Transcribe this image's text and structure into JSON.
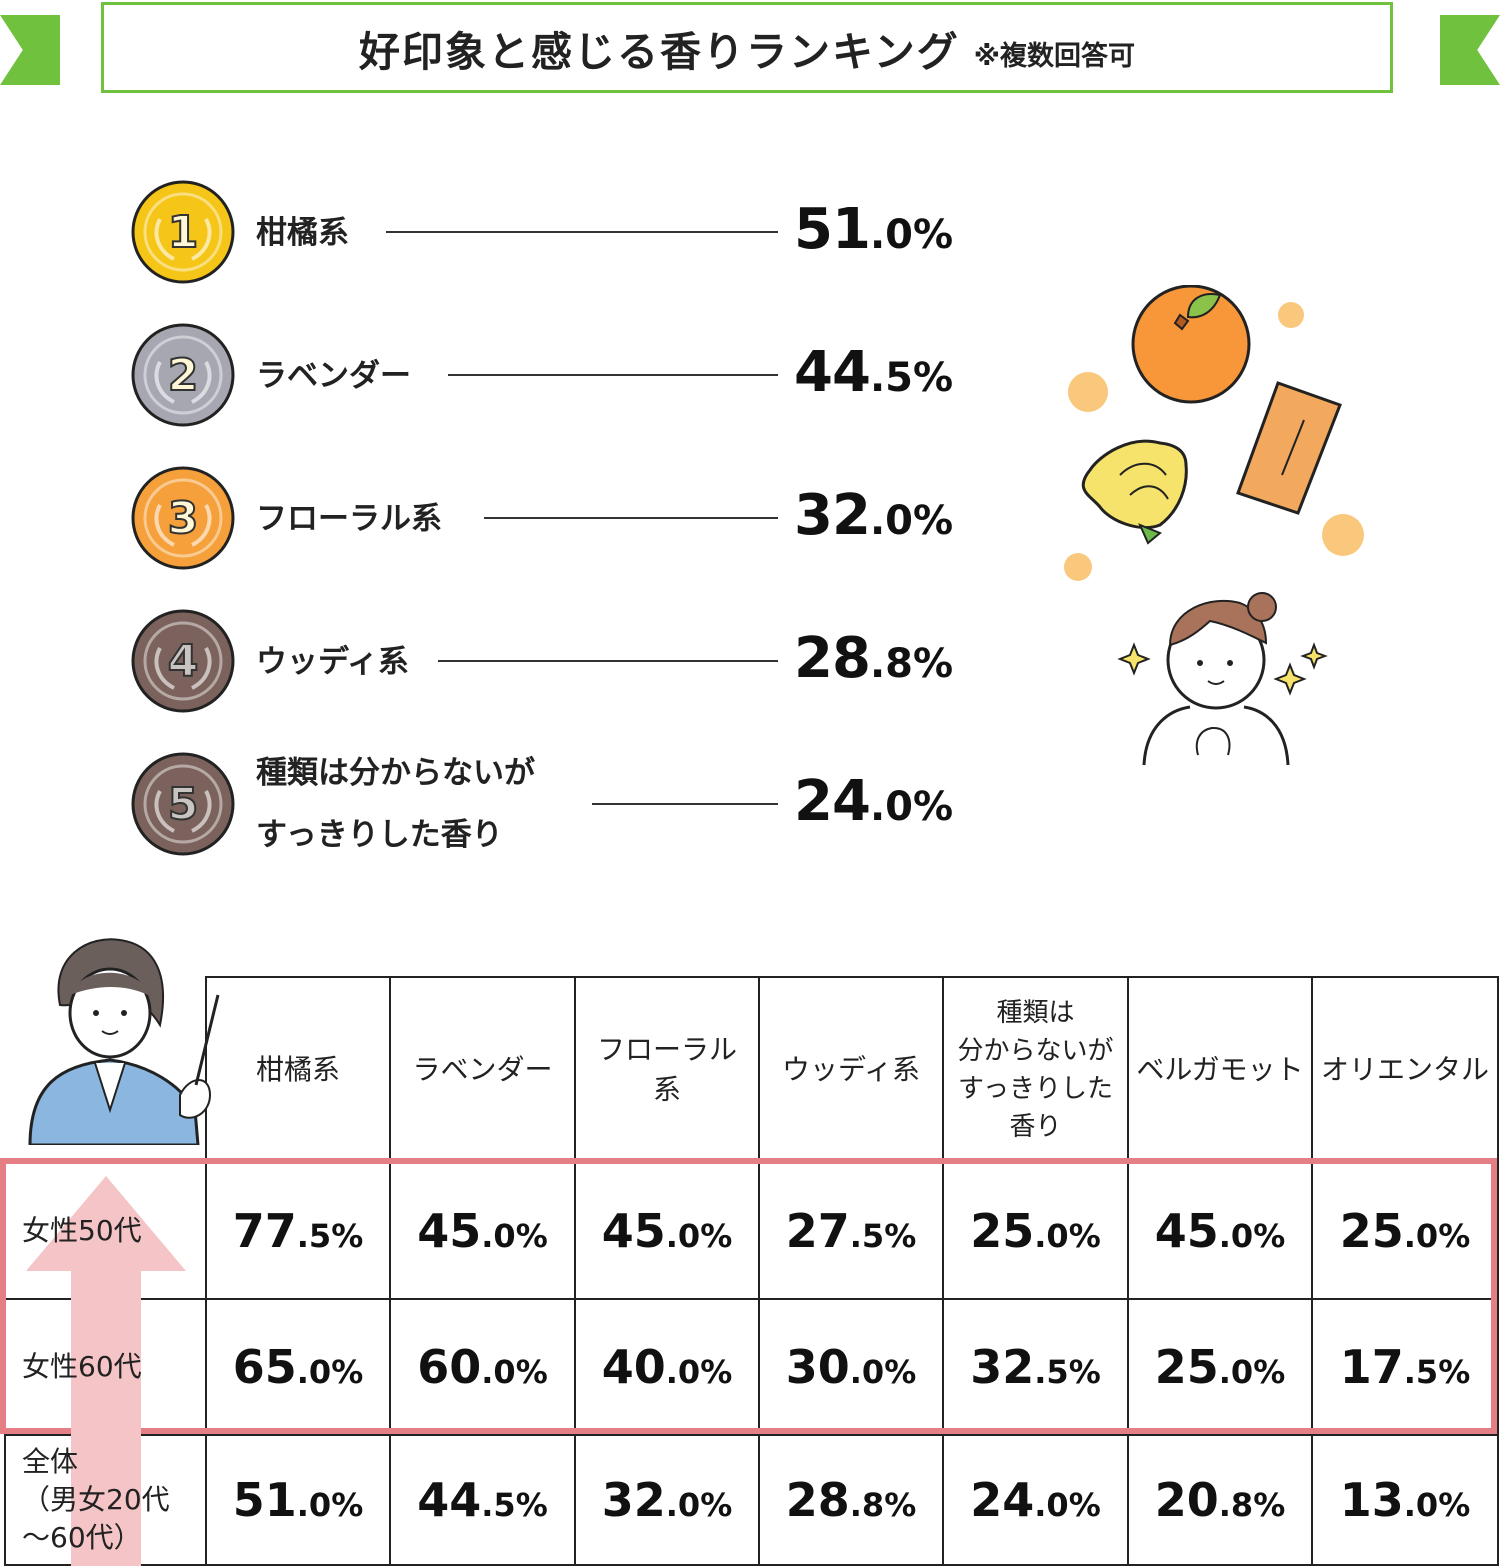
{
  "title": {
    "main": "好印象と感じる香りランキング",
    "note": "※複数回答可"
  },
  "ranking": [
    {
      "rank": "1",
      "label": "柑橘系",
      "label2": "",
      "pct_int": "51",
      "pct_dec": ".0%",
      "medal_color": "#f5c518"
    },
    {
      "rank": "2",
      "label": "ラベンダー",
      "label2": "",
      "pct_int": "44",
      "pct_dec": ".5%",
      "medal_color": "#a6a7b1"
    },
    {
      "rank": "3",
      "label": "フローラル系",
      "label2": "",
      "pct_int": "32",
      "pct_dec": ".0%",
      "medal_color": "#f5a03a"
    },
    {
      "rank": "4",
      "label": "ウッディ系",
      "label2": "",
      "pct_int": "28",
      "pct_dec": ".8%",
      "medal_color": "#7b625c"
    },
    {
      "rank": "5",
      "label": "種類は分からないが",
      "label2": "すっきりした香り",
      "pct_int": "24",
      "pct_dec": ".0%",
      "medal_color": "#7b625c"
    }
  ],
  "table": {
    "headers": [
      "柑橘系",
      "ラベンダー",
      "フローラル\n系",
      "ウッディ系",
      "種類は\n分からないが\nすっきりした\n香り",
      "ベルガモット",
      "オリエンタル"
    ],
    "rows": [
      {
        "label": "女性50代",
        "values": [
          [
            "77",
            ".5%"
          ],
          [
            "45",
            ".0%"
          ],
          [
            "45",
            ".0%"
          ],
          [
            "27",
            ".5%"
          ],
          [
            "25",
            ".0%"
          ],
          [
            "45",
            ".0%"
          ],
          [
            "25",
            ".0%"
          ]
        ]
      },
      {
        "label": "女性60代",
        "values": [
          [
            "65",
            ".0%"
          ],
          [
            "60",
            ".0%"
          ],
          [
            "40",
            ".0%"
          ],
          [
            "30",
            ".0%"
          ],
          [
            "32",
            ".5%"
          ],
          [
            "25",
            ".0%"
          ],
          [
            "17",
            ".5%"
          ]
        ]
      },
      {
        "label": "全体\n（男女20代\n～60代）",
        "values": [
          [
            "51",
            ".0%"
          ],
          [
            "44",
            ".5%"
          ],
          [
            "32",
            ".0%"
          ],
          [
            "28",
            ".8%"
          ],
          [
            "24",
            ".0%"
          ],
          [
            "20",
            ".8%"
          ],
          [
            "13",
            ".0%"
          ]
        ]
      }
    ]
  },
  "chart_data": [
    {
      "type": "bar",
      "title": "好印象と感じる香りランキング",
      "categories": [
        "柑橘系",
        "ラベンダー",
        "フローラル系",
        "ウッディ系",
        "種類は分からないがすっきりした香り"
      ],
      "values": [
        51.0,
        44.5,
        32.0,
        28.8,
        24.0
      ],
      "ylabel": "%"
    },
    {
      "type": "table",
      "categories": [
        "柑橘系",
        "ラベンダー",
        "フローラル系",
        "ウッディ系",
        "種類は分からないがすっきりした香り",
        "ベルガモット",
        "オリエンタル"
      ],
      "series": [
        {
          "name": "女性50代",
          "values": [
            77.5,
            45.0,
            45.0,
            27.5,
            25.0,
            45.0,
            25.0
          ]
        },
        {
          "name": "女性60代",
          "values": [
            65.0,
            60.0,
            40.0,
            30.0,
            32.5,
            25.0,
            17.5
          ]
        },
        {
          "name": "全体（男女20代～60代）",
          "values": [
            51.0,
            44.5,
            32.0,
            28.8,
            24.0,
            20.8,
            13.0
          ]
        }
      ]
    }
  ],
  "colors": {
    "banner_green": "#6fc13e",
    "highlight_red": "#e47f85",
    "arrow_pink": "#f4c4c6"
  }
}
